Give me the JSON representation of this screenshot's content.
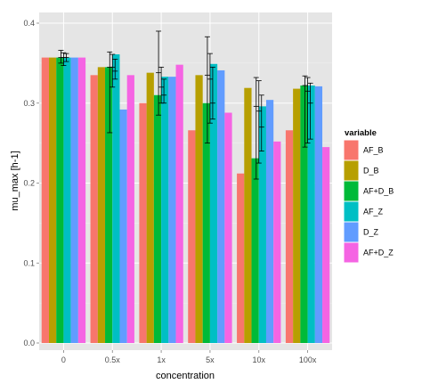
{
  "chart_data": {
    "type": "bar",
    "xlabel": "concentration",
    "ylabel": "mu_max [h-1]",
    "ylim": [
      0,
      0.4
    ],
    "yticks": [
      "0.0",
      "0.1",
      "0.2",
      "0.3",
      "0.4"
    ],
    "categories": [
      "0",
      "0.5x",
      "1x",
      "5x",
      "10x",
      "100x"
    ],
    "legend_title": "variable",
    "legend_position": "right",
    "grid": true,
    "panel_background": "#e5e5e5",
    "series": [
      {
        "name": "AF_B",
        "color": "#f8766d",
        "values": [
          0.357,
          0.335,
          0.3,
          0.266,
          0.212,
          0.266
        ]
      },
      {
        "name": "D_B",
        "color": "#b79f00",
        "values": [
          0.357,
          0.345,
          0.338,
          0.335,
          0.319,
          0.318
        ]
      },
      {
        "name": "AF+D_B",
        "color": "#00ba38",
        "values": [
          0.357,
          0.345,
          0.31,
          0.3,
          0.231,
          0.322
        ]
      },
      {
        "name": "AF_Z",
        "color": "#00bfc4",
        "values": [
          0.357,
          0.361,
          0.333,
          0.349,
          0.296,
          0.322
        ]
      },
      {
        "name": "D_Z",
        "color": "#619cff",
        "values": [
          0.357,
          0.292,
          0.333,
          0.341,
          0.304,
          0.321
        ]
      },
      {
        "name": "AF+D_Z",
        "color": "#f564e3",
        "values": [
          0.357,
          0.335,
          0.348,
          0.288,
          0.252,
          0.245
        ]
      }
    ],
    "error_bars": [
      {
        "category": "0",
        "points": [
          {
            "y": 0.357,
            "lo": 0.35,
            "hi": 0.366
          },
          {
            "y": 0.357,
            "lo": 0.347,
            "hi": 0.363
          },
          {
            "y": 0.357,
            "lo": 0.352,
            "hi": 0.362
          }
        ]
      },
      {
        "category": "0.5x",
        "points": [
          {
            "y": 0.345,
            "lo": 0.263,
            "hi": 0.364
          },
          {
            "y": 0.345,
            "lo": 0.32,
            "hi": 0.361
          },
          {
            "y": 0.34,
            "lo": 0.33,
            "hi": 0.355
          }
        ]
      },
      {
        "category": "1x",
        "points": [
          {
            "y": 0.338,
            "lo": 0.285,
            "hi": 0.39
          },
          {
            "y": 0.32,
            "lo": 0.3,
            "hi": 0.345
          },
          {
            "y": 0.31,
            "lo": 0.3,
            "hi": 0.33
          }
        ]
      },
      {
        "category": "5x",
        "points": [
          {
            "y": 0.335,
            "lo": 0.25,
            "hi": 0.383
          },
          {
            "y": 0.33,
            "lo": 0.275,
            "hi": 0.362
          },
          {
            "y": 0.3,
            "lo": 0.28,
            "hi": 0.345
          }
        ]
      },
      {
        "category": "10x",
        "points": [
          {
            "y": 0.296,
            "lo": 0.205,
            "hi": 0.332
          },
          {
            "y": 0.29,
            "lo": 0.225,
            "hi": 0.328
          },
          {
            "y": 0.27,
            "lo": 0.24,
            "hi": 0.31
          }
        ]
      },
      {
        "category": "100x",
        "points": [
          {
            "y": 0.322,
            "lo": 0.245,
            "hi": 0.334
          },
          {
            "y": 0.315,
            "lo": 0.25,
            "hi": 0.332
          },
          {
            "y": 0.3,
            "lo": 0.255,
            "hi": 0.325
          }
        ]
      }
    ]
  }
}
